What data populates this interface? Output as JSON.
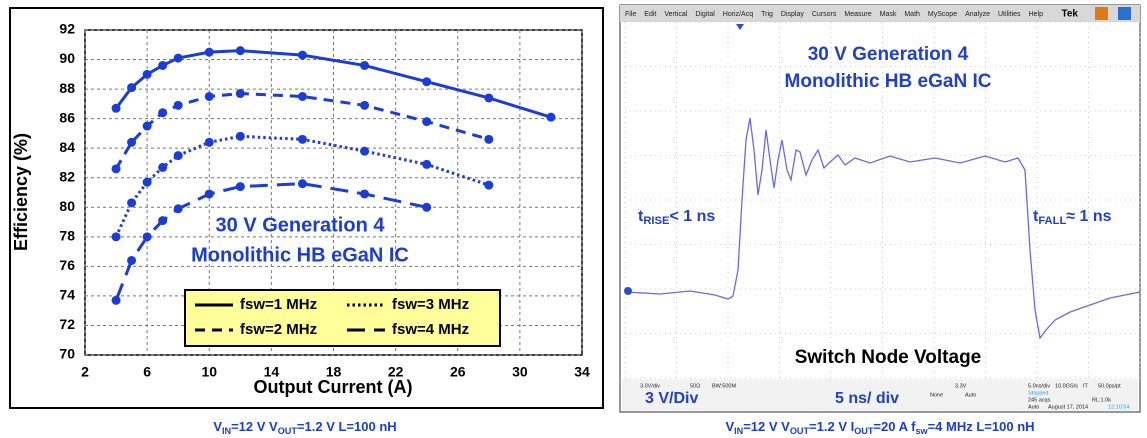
{
  "chart_data": {
    "type": "line",
    "xlabel": "Output Current (A)",
    "ylabel": "Efficiency (%)",
    "xlim": [
      2,
      34
    ],
    "xticks": [
      2,
      6,
      10,
      14,
      18,
      22,
      26,
      30,
      34
    ],
    "ylim": [
      70,
      92
    ],
    "yticks": [
      70,
      72,
      74,
      76,
      78,
      80,
      82,
      84,
      86,
      88,
      90,
      92
    ],
    "grid": true,
    "legend": "lower center",
    "annotations": [
      "30 V Generation 4",
      "Monolithic HB eGaN IC"
    ],
    "series": [
      {
        "name": "fsw=1 MHz",
        "color": "#1a3cd8",
        "linestyle": "solid",
        "x": [
          4,
          5,
          6,
          7,
          8,
          10,
          12,
          16,
          20,
          24,
          28,
          32
        ],
        "values": [
          86.7,
          88.1,
          89.0,
          89.6,
          90.1,
          90.5,
          90.6,
          90.3,
          89.6,
          88.5,
          87.4,
          86.1
        ]
      },
      {
        "name": "fsw=2 MHz",
        "color": "#1a3cd8",
        "linestyle": "dashed",
        "x": [
          4,
          5,
          6,
          7,
          8,
          10,
          12,
          16,
          20,
          24,
          28
        ],
        "values": [
          82.6,
          84.4,
          85.5,
          86.4,
          86.9,
          87.5,
          87.7,
          87.5,
          86.9,
          85.8,
          84.6
        ]
      },
      {
        "name": "fsw=3 MHz",
        "color": "#1a3cd8",
        "linestyle": "dotted",
        "x": [
          4,
          5,
          6,
          7,
          8,
          10,
          12,
          16,
          20,
          24,
          28
        ],
        "values": [
          78.0,
          80.3,
          81.7,
          82.7,
          83.5,
          84.4,
          84.8,
          84.6,
          83.8,
          82.9,
          81.5
        ]
      },
      {
        "name": "fsw=4 MHz",
        "color": "#1a3cd8",
        "linestyle": "longdash",
        "x": [
          4,
          5,
          6,
          7,
          8,
          10,
          12,
          16,
          20,
          24
        ],
        "values": [
          73.7,
          76.4,
          78.0,
          79.1,
          79.9,
          80.9,
          81.4,
          81.6,
          80.9,
          80.0
        ]
      }
    ],
    "caption": [
      {
        "text": "V"
      },
      {
        "sub": "IN"
      },
      {
        "text": "=12 V V"
      },
      {
        "sub": "OUT"
      },
      {
        "text": "=1.2 V L=100 nH"
      }
    ]
  },
  "scope": {
    "menu": [
      "File",
      "Edit",
      "Vertical",
      "Digital",
      "Horiz/Acq",
      "Trig",
      "Display",
      "Cursors",
      "Measure",
      "Mask",
      "Math",
      "MyScope",
      "Analyze",
      "Utilities",
      "Help"
    ],
    "brand": "Tek",
    "title": [
      "30 V Generation 4",
      "Monolithic HB eGaN IC"
    ],
    "rise_label": [
      {
        "text": "t"
      },
      {
        "sub": "RISE"
      },
      {
        "text": "< 1 ns"
      }
    ],
    "fall_label": [
      {
        "text": "t"
      },
      {
        "sub": "FALL"
      },
      {
        "text": "≈ 1 ns"
      }
    ],
    "signal_label": "Switch Node Voltage",
    "vdiv_label": "3 V/Div",
    "tdiv_label": "5 ns/ div",
    "status": [
      "3.0V/div",
      "50Ω",
      "BW:500M",
      "3.3V",
      "None",
      "Auto",
      "5.0ns/div",
      "10.0GS/s",
      "IT",
      "50.0ps/pt",
      "Stopped",
      "245 acqs",
      "RL:1.0k",
      "Auto",
      "August 17, 2014",
      "12:10:54"
    ],
    "caption": [
      {
        "text": "V"
      },
      {
        "sub": "IN"
      },
      {
        "text": "=12 V V"
      },
      {
        "sub": "OUT"
      },
      {
        "text": "=1.2 V I"
      },
      {
        "sub": "OUT"
      },
      {
        "text": "=20 A f"
      },
      {
        "sub": "sw"
      },
      {
        "text": "=4 MHz L=100 nH"
      }
    ]
  }
}
